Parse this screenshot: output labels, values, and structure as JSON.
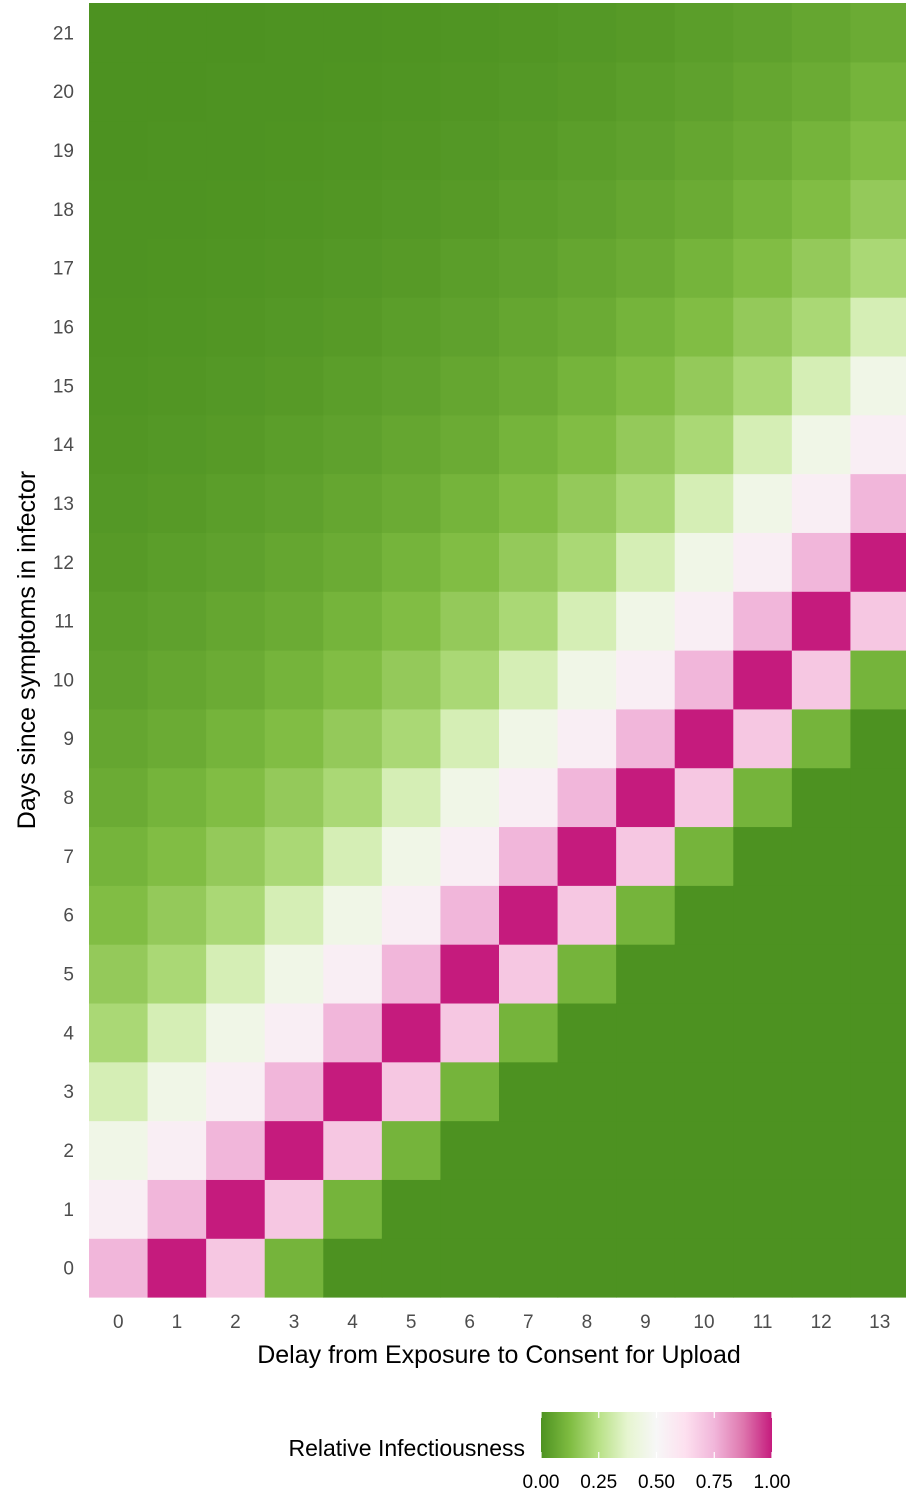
{
  "chart_data": {
    "type": "heatmap",
    "xlabel": "Delay from Exposure to Consent for Upload",
    "ylabel": "Days since symptoms in infector",
    "x": [
      0,
      1,
      2,
      3,
      4,
      5,
      6,
      7,
      8,
      9,
      10,
      11,
      12,
      13
    ],
    "y": [
      0,
      1,
      2,
      3,
      4,
      5,
      6,
      7,
      8,
      9,
      10,
      11,
      12,
      13,
      14,
      15,
      16,
      17,
      18,
      19,
      20,
      21
    ],
    "value_rule": "cells with y - x between -3 and 4 take the listed offset values; cells with y > x + 4 fade toward 0 by ramp offset (y - x - 4); cells with y < x - 3 are 0",
    "offset_values": {
      "-3": 0.1,
      "-2": 0.7,
      "-1": 1.0,
      "0": 0.75,
      "1": 0.55,
      "2": 0.45,
      "3": 0.33,
      "4": 0.22
    },
    "below_ramp": [
      0.17,
      0.13,
      0.1,
      0.075,
      0.06,
      0.045,
      0.035,
      0.025,
      0.018,
      0.012,
      0.008,
      0.005,
      0.003,
      0.002,
      0.001,
      0.0005,
      0.0002
    ],
    "legend": {
      "title": "Relative Infectiousness",
      "ticks": [
        "0.00",
        "0.25",
        "0.50",
        "0.75",
        "1.00"
      ],
      "tick_values": [
        0,
        0.25,
        0.5,
        0.75,
        1.0
      ],
      "placement": "bottom"
    },
    "colors": {
      "low": "#4d9221",
      "scale_stops": [
        "#4d9221",
        "#7fbc41",
        "#b8e186",
        "#e6f5d0",
        "#f7f7f7",
        "#fde0ef",
        "#f1b6da",
        "#de77ae",
        "#c51b7d"
      ]
    },
    "grid": false
  }
}
